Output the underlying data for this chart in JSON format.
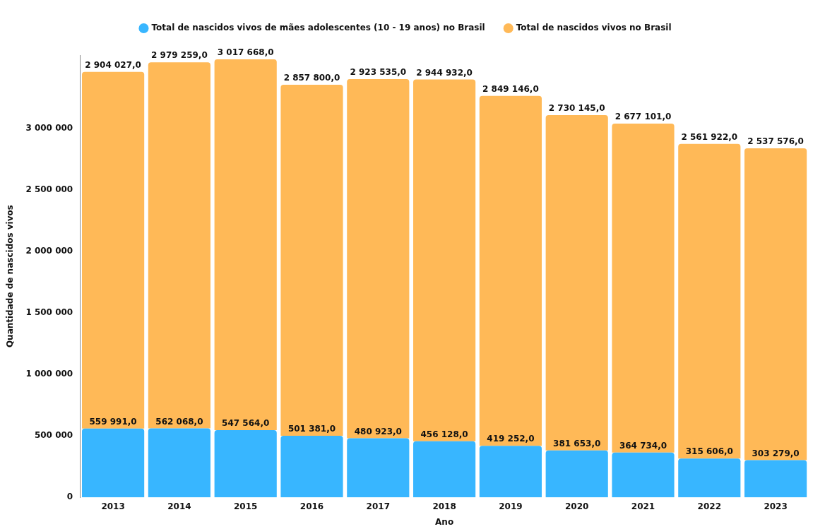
{
  "chart_data": {
    "type": "bar",
    "stacked": true,
    "xlabel": "Ano",
    "ylabel": "Quantidade de nascidos vivos",
    "legend": "top",
    "grid": false,
    "categories": [
      "2013",
      "2014",
      "2015",
      "2016",
      "2017",
      "2018",
      "2019",
      "2020",
      "2021",
      "2022",
      "2023"
    ],
    "ylim": [
      0,
      3600000
    ],
    "yticks": [
      {
        "value": 0,
        "label": "0"
      },
      {
        "value": 500000,
        "label": "500 000"
      },
      {
        "value": 1000000,
        "label": "1 000 000"
      },
      {
        "value": 1500000,
        "label": "1 500 000"
      },
      {
        "value": 2000000,
        "label": "2 000 000"
      },
      {
        "value": 2500000,
        "label": "2 500 000"
      },
      {
        "value": 3000000,
        "label": "3 000 000"
      }
    ],
    "series": [
      {
        "name": "Total de nascidos vivos de mães adolescentes (10 - 19 anos) no Brasil",
        "color": "#38b6ff",
        "values": [
          559991,
          562068,
          547564,
          501381,
          480923,
          456128,
          419252,
          381653,
          364734,
          315606,
          303279
        ],
        "value_labels": [
          "559 991,0",
          "562 068,0",
          "547 564,0",
          "501 381,0",
          "480 923,0",
          "456 128,0",
          "419 252,0",
          "381 653,0",
          "364 734,0",
          "315 606,0",
          "303 279,0"
        ]
      },
      {
        "name": "Total de nascidos vivos no Brasil",
        "color": "#ffb957",
        "values": [
          2904027,
          2979259,
          3017668,
          2857800,
          2923535,
          2944932,
          2849146,
          2730145,
          2677101,
          2561922,
          2537576
        ],
        "value_labels": [
          "2 904 027,0",
          "2 979 259,0",
          "3 017 668,0",
          "2 857 800,0",
          "2 923 535,0",
          "2 944 932,0",
          "2 849 146,0",
          "2 730 145,0",
          "2 677 101,0",
          "2 561 922,0",
          "2 537 576,0"
        ]
      }
    ]
  }
}
